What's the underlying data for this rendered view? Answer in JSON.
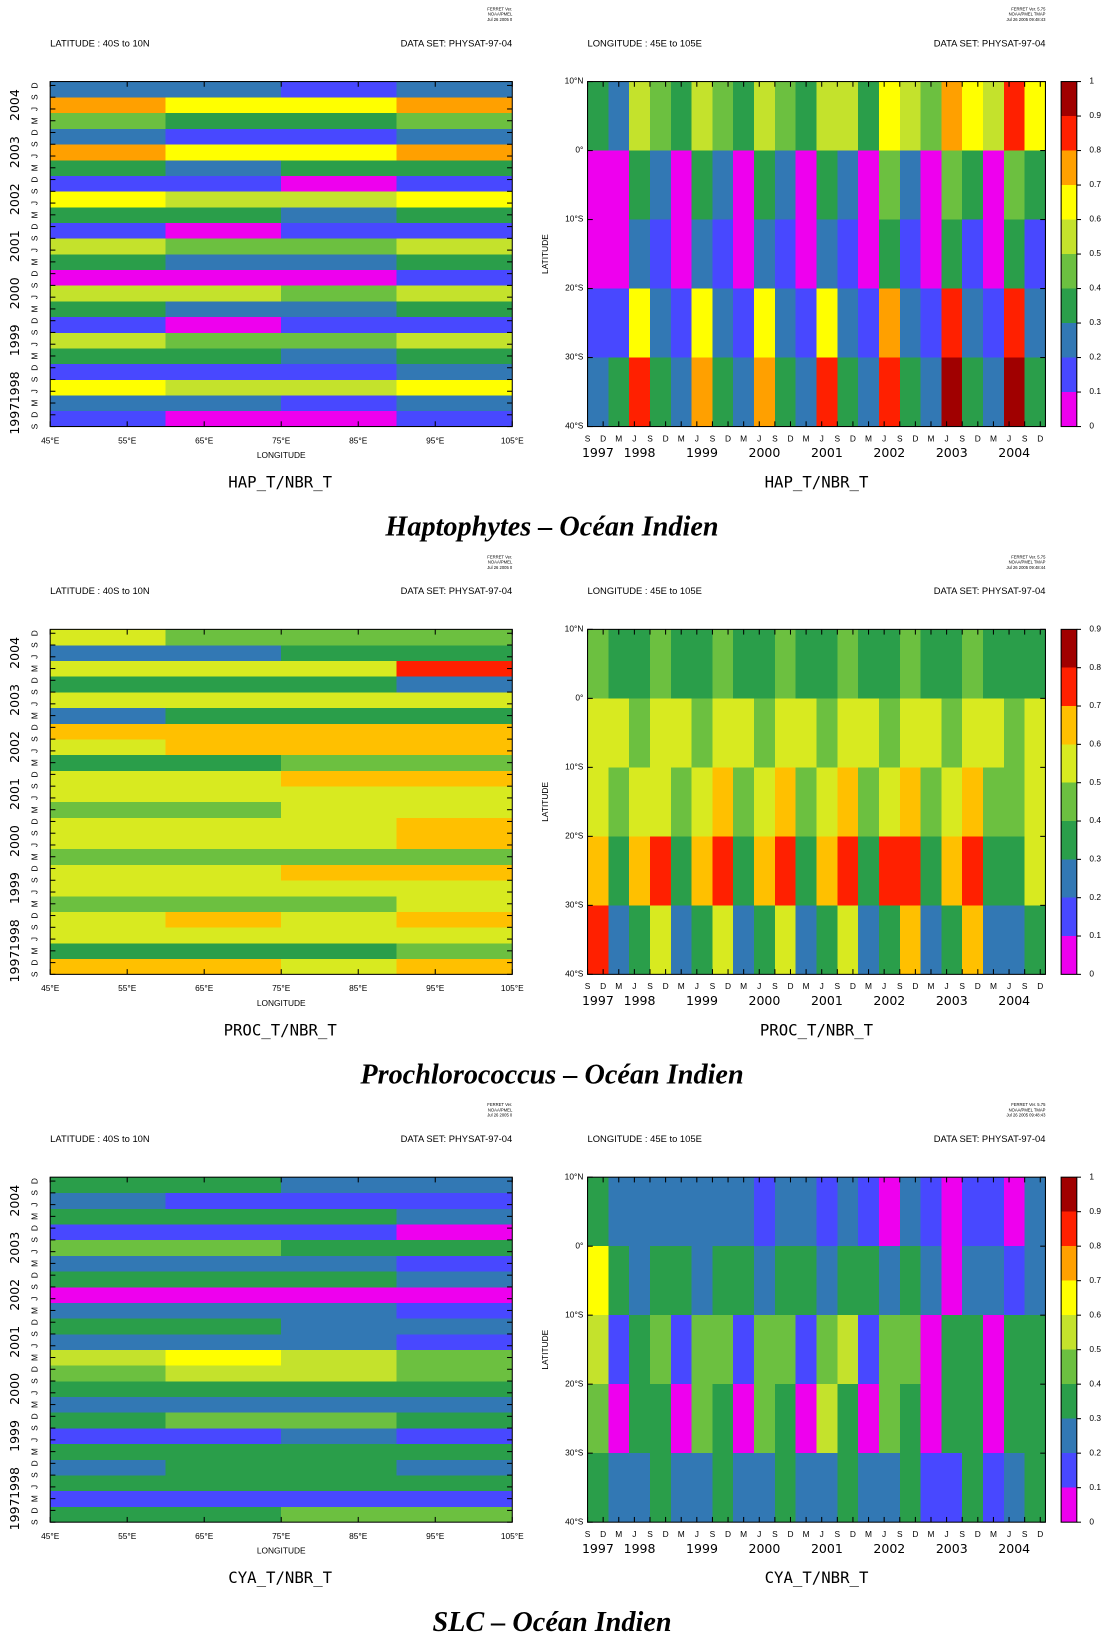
{
  "axes": {
    "time": {
      "lim": [
        1997.667,
        2005.0
      ],
      "ticks": [
        {
          "value": 1997.667,
          "label": "S"
        },
        {
          "value": 1997.917,
          "label": "D"
        },
        {
          "value": 1998.167,
          "label": "M"
        },
        {
          "value": 1998.417,
          "label": "J"
        },
        {
          "value": 1998.667,
          "label": "S"
        },
        {
          "value": 1998.917,
          "label": "D"
        },
        {
          "value": 1999.167,
          "label": "M"
        },
        {
          "value": 1999.417,
          "label": "J"
        },
        {
          "value": 1999.667,
          "label": "S"
        },
        {
          "value": 1999.917,
          "label": "D"
        },
        {
          "value": 2000.167,
          "label": "M"
        },
        {
          "value": 2000.417,
          "label": "J"
        },
        {
          "value": 2000.667,
          "label": "S"
        },
        {
          "value": 2000.917,
          "label": "D"
        },
        {
          "value": 2001.167,
          "label": "M"
        },
        {
          "value": 2001.417,
          "label": "J"
        },
        {
          "value": 2001.667,
          "label": "S"
        },
        {
          "value": 2001.917,
          "label": "D"
        },
        {
          "value": 2002.167,
          "label": "M"
        },
        {
          "value": 2002.417,
          "label": "J"
        },
        {
          "value": 2002.667,
          "label": "S"
        },
        {
          "value": 2002.917,
          "label": "D"
        },
        {
          "value": 2003.167,
          "label": "M"
        },
        {
          "value": 2003.417,
          "label": "J"
        },
        {
          "value": 2003.667,
          "label": "S"
        },
        {
          "value": 2003.917,
          "label": "D"
        },
        {
          "value": 2004.167,
          "label": "M"
        },
        {
          "value": 2004.417,
          "label": "J"
        },
        {
          "value": 2004.667,
          "label": "S"
        },
        {
          "value": 2004.917,
          "label": "D"
        }
      ],
      "years": [
        {
          "value": 1997.833,
          "label": "1997"
        },
        {
          "value": 1998.5,
          "label": "1998"
        },
        {
          "value": 1999.5,
          "label": "1999"
        },
        {
          "value": 2000.5,
          "label": "2000"
        },
        {
          "value": 2001.5,
          "label": "2001"
        },
        {
          "value": 2002.5,
          "label": "2002"
        },
        {
          "value": 2003.5,
          "label": "2003"
        },
        {
          "value": 2004.5,
          "label": "2004"
        }
      ],
      "bins": [
        1997.667,
        1998.0,
        1998.333,
        1998.667,
        1999.0,
        1999.333,
        1999.667,
        2000.0,
        2000.333,
        2000.667,
        2001.0,
        2001.333,
        2001.667,
        2002.0,
        2002.333,
        2002.667,
        2003.0,
        2003.333,
        2003.667,
        2004.0,
        2004.333,
        2004.667,
        2005.0
      ]
    },
    "longitude": {
      "label": "LONGITUDE",
      "lim": [
        45,
        105
      ],
      "ticks": [
        {
          "value": 45,
          "label": "45°E"
        },
        {
          "value": 55,
          "label": "55°E"
        },
        {
          "value": 65,
          "label": "65°E"
        },
        {
          "value": 75,
          "label": "75°E"
        },
        {
          "value": 85,
          "label": "85°E"
        },
        {
          "value": 95,
          "label": "95°E"
        },
        {
          "value": 105,
          "label": "105°E"
        }
      ],
      "bins": [
        45,
        60,
        75,
        90,
        105
      ]
    },
    "latitude": {
      "label": "LATITUDE",
      "lim": [
        -40,
        10
      ],
      "ticks": [
        {
          "value": 10,
          "label": "10°N"
        },
        {
          "value": 0,
          "label": "0°"
        },
        {
          "value": -10,
          "label": "10°S"
        },
        {
          "value": -20,
          "label": "20°S"
        },
        {
          "value": -30,
          "label": "30°S"
        },
        {
          "value": -40,
          "label": "40°S"
        }
      ],
      "bins": [
        10,
        0,
        -10,
        -20,
        -30,
        -40
      ]
    }
  },
  "chart_data": [
    {
      "type": "heatmap",
      "orientation": "time-longitude",
      "colorbar": false,
      "stamp": [
        "FERRET Ver.",
        "NOAA/PMEL",
        "Jul 26 2005 0"
      ],
      "header_left": "LATITUDE : 40S to 10N",
      "header_right": "DATA SET: PHYSAT-97-04",
      "title": "HAP_T/NBR_T",
      "levels": [
        0,
        0.1,
        0.2,
        0.3,
        0.4,
        0.5,
        0.6,
        0.7,
        0.8,
        0.9,
        1
      ],
      "colors": [
        "#ee00ee",
        "#4848ff",
        "#3278b4",
        "#2a9e4a",
        "#6cc040",
        "#c4e22c",
        "#ffff00",
        "#ffa000",
        "#ff2000",
        "#a00000"
      ],
      "z": [
        [
          0.1,
          0.05,
          0.05,
          0.1
        ],
        [
          0.2,
          0.2,
          0.1,
          0.2
        ],
        [
          0.6,
          0.5,
          0.5,
          0.6
        ],
        [
          0.1,
          0.1,
          0.1,
          0.2
        ],
        [
          0.3,
          0.3,
          0.2,
          0.3
        ],
        [
          0.5,
          0.4,
          0.4,
          0.5
        ],
        [
          0.1,
          0.05,
          0.1,
          0.1
        ],
        [
          0.3,
          0.2,
          0.2,
          0.3
        ],
        [
          0.5,
          0.5,
          0.4,
          0.5
        ],
        [
          0.05,
          0.05,
          0.05,
          0.1
        ],
        [
          0.3,
          0.2,
          0.2,
          0.3
        ],
        [
          0.5,
          0.4,
          0.4,
          0.5
        ],
        [
          0.1,
          0.05,
          0.1,
          0.1
        ],
        [
          0.3,
          0.3,
          0.2,
          0.3
        ],
        [
          0.6,
          0.5,
          0.5,
          0.6
        ],
        [
          0.1,
          0.1,
          0.05,
          0.1
        ],
        [
          0.3,
          0.2,
          0.3,
          0.3
        ],
        [
          0.7,
          0.6,
          0.6,
          0.7
        ],
        [
          0.2,
          0.1,
          0.1,
          0.2
        ],
        [
          0.4,
          0.3,
          0.3,
          0.4
        ],
        [
          0.7,
          0.6,
          0.6,
          0.7
        ],
        [
          0.2,
          0.2,
          0.1,
          0.2
        ]
      ]
    },
    {
      "type": "heatmap",
      "orientation": "latitude-time",
      "colorbar": true,
      "stamp": [
        "FERRET Ver. 5.75",
        "NOAA/PMEL TMAP",
        "Jul 26 2005 09:48:43"
      ],
      "header_left": "LONGITUDE : 45E to 105E",
      "header_right": "DATA SET: PHYSAT-97-04",
      "title": "HAP_T/NBR_T",
      "levels": [
        0,
        0.1,
        0.2,
        0.3,
        0.4,
        0.5,
        0.6,
        0.7,
        0.8,
        0.9,
        1
      ],
      "colors": [
        "#ee00ee",
        "#4848ff",
        "#3278b4",
        "#2a9e4a",
        "#6cc040",
        "#c4e22c",
        "#ffff00",
        "#ffa000",
        "#ff2000",
        "#a00000"
      ],
      "z": [
        [
          0.3,
          0.2,
          0.5,
          0.4,
          0.3,
          0.5,
          0.4,
          0.3,
          0.5,
          0.4,
          0.3,
          0.5,
          0.5,
          0.3,
          0.6,
          0.5,
          0.4,
          0.7,
          0.6,
          0.5,
          0.8,
          0.6
        ],
        [
          0.05,
          0.05,
          0.3,
          0.2,
          0.05,
          0.3,
          0.2,
          0.05,
          0.3,
          0.2,
          0.05,
          0.3,
          0.2,
          0.05,
          0.4,
          0.2,
          0.05,
          0.4,
          0.3,
          0.05,
          0.4,
          0.3
        ],
        [
          0.05,
          0.05,
          0.2,
          0.1,
          0.05,
          0.2,
          0.1,
          0.05,
          0.2,
          0.1,
          0.05,
          0.2,
          0.1,
          0.05,
          0.3,
          0.1,
          0.05,
          0.3,
          0.1,
          0.05,
          0.3,
          0.1
        ],
        [
          0.1,
          0.1,
          0.6,
          0.2,
          0.1,
          0.6,
          0.2,
          0.1,
          0.6,
          0.2,
          0.1,
          0.6,
          0.2,
          0.1,
          0.7,
          0.2,
          0.1,
          0.8,
          0.2,
          0.1,
          0.8,
          0.2
        ],
        [
          0.2,
          0.3,
          0.8,
          0.3,
          0.2,
          0.7,
          0.3,
          0.2,
          0.7,
          0.3,
          0.2,
          0.8,
          0.3,
          0.2,
          0.8,
          0.3,
          0.2,
          0.9,
          0.3,
          0.2,
          0.9,
          0.3
        ]
      ]
    },
    {
      "type": "heatmap",
      "orientation": "time-longitude",
      "colorbar": false,
      "stamp": [
        "FERRET Ver.",
        "NOAA/PMEL",
        "Jul 26 2005 0"
      ],
      "header_left": "LATITUDE : 40S to 10N",
      "header_right": "DATA SET: PHYSAT-97-04",
      "title": "PROC_T/NBR_T",
      "levels": [
        0,
        0.1,
        0.2,
        0.3,
        0.4,
        0.5,
        0.6,
        0.7,
        0.8,
        0.9
      ],
      "colors": [
        "#ee00ee",
        "#4848ff",
        "#3278b4",
        "#2a9e4a",
        "#6cc040",
        "#d8ea20",
        "#ffc000",
        "#ff2000",
        "#a00000"
      ],
      "z": [
        [
          0.6,
          0.6,
          0.5,
          0.6
        ],
        [
          0.3,
          0.3,
          0.3,
          0.4
        ],
        [
          0.5,
          0.5,
          0.5,
          0.5
        ],
        [
          0.5,
          0.6,
          0.5,
          0.6
        ],
        [
          0.4,
          0.4,
          0.4,
          0.5
        ],
        [
          0.5,
          0.5,
          0.5,
          0.5
        ],
        [
          0.5,
          0.5,
          0.6,
          0.6
        ],
        [
          0.4,
          0.4,
          0.4,
          0.4
        ],
        [
          0.5,
          0.5,
          0.5,
          0.6
        ],
        [
          0.5,
          0.5,
          0.5,
          0.6
        ],
        [
          0.4,
          0.4,
          0.5,
          0.5
        ],
        [
          0.5,
          0.5,
          0.5,
          0.5
        ],
        [
          0.5,
          0.5,
          0.6,
          0.6
        ],
        [
          0.3,
          0.3,
          0.4,
          0.4
        ],
        [
          0.5,
          0.6,
          0.6,
          0.6
        ],
        [
          0.6,
          0.6,
          0.6,
          0.6
        ],
        [
          0.2,
          0.3,
          0.3,
          0.3
        ],
        [
          0.5,
          0.5,
          0.5,
          0.5
        ],
        [
          0.3,
          0.3,
          0.3,
          0.2
        ],
        [
          0.5,
          0.5,
          0.5,
          0.7
        ],
        [
          0.2,
          0.2,
          0.3,
          0.3
        ],
        [
          0.5,
          0.4,
          0.4,
          0.4
        ]
      ]
    },
    {
      "type": "heatmap",
      "orientation": "latitude-time",
      "colorbar": true,
      "stamp": [
        "FERRET Ver. 5.75",
        "NOAA/PMEL TMAP",
        "Jul 26 2005 09:48:44"
      ],
      "header_left": "LONGITUDE : 45E to 105E",
      "header_right": "DATA SET: PHYSAT-97-04",
      "title": "PROC_T/NBR_T",
      "levels": [
        0,
        0.1,
        0.2,
        0.3,
        0.4,
        0.5,
        0.6,
        0.7,
        0.8,
        0.9
      ],
      "colors": [
        "#ee00ee",
        "#4848ff",
        "#3278b4",
        "#2a9e4a",
        "#6cc040",
        "#d8ea20",
        "#ffc000",
        "#ff2000",
        "#a00000"
      ],
      "z": [
        [
          0.4,
          0.3,
          0.3,
          0.4,
          0.3,
          0.3,
          0.4,
          0.3,
          0.3,
          0.4,
          0.3,
          0.3,
          0.4,
          0.3,
          0.3,
          0.4,
          0.3,
          0.3,
          0.4,
          0.3,
          0.3,
          0.3
        ],
        [
          0.5,
          0.5,
          0.4,
          0.5,
          0.5,
          0.4,
          0.5,
          0.5,
          0.4,
          0.5,
          0.5,
          0.4,
          0.5,
          0.5,
          0.4,
          0.5,
          0.5,
          0.4,
          0.5,
          0.5,
          0.4,
          0.5
        ],
        [
          0.5,
          0.4,
          0.5,
          0.5,
          0.4,
          0.5,
          0.6,
          0.4,
          0.5,
          0.6,
          0.4,
          0.5,
          0.6,
          0.4,
          0.5,
          0.6,
          0.4,
          0.5,
          0.6,
          0.4,
          0.4,
          0.5
        ],
        [
          0.6,
          0.3,
          0.6,
          0.7,
          0.3,
          0.6,
          0.7,
          0.3,
          0.6,
          0.7,
          0.3,
          0.6,
          0.7,
          0.3,
          0.7,
          0.7,
          0.3,
          0.6,
          0.7,
          0.3,
          0.3,
          0.5
        ],
        [
          0.7,
          0.2,
          0.3,
          0.5,
          0.2,
          0.3,
          0.5,
          0.2,
          0.3,
          0.5,
          0.2,
          0.3,
          0.5,
          0.2,
          0.3,
          0.6,
          0.2,
          0.3,
          0.6,
          0.2,
          0.2,
          0.3
        ]
      ]
    },
    {
      "type": "heatmap",
      "orientation": "time-longitude",
      "colorbar": false,
      "stamp": [
        "FERRET Ver.",
        "NOAA/PMEL",
        "Jul 26 2005 0"
      ],
      "header_left": "LATITUDE : 40S to 10N",
      "header_right": "DATA SET: PHYSAT-97-04",
      "title": "CYA_T/NBR_T",
      "levels": [
        0,
        0.1,
        0.2,
        0.3,
        0.4,
        0.5,
        0.6,
        0.7,
        0.8,
        0.9,
        1
      ],
      "colors": [
        "#ee00ee",
        "#4848ff",
        "#3278b4",
        "#2a9e4a",
        "#6cc040",
        "#c4e22c",
        "#ffff00",
        "#ffa000",
        "#ff2000",
        "#a00000"
      ],
      "z": [
        [
          0.3,
          0.3,
          0.4,
          0.4
        ],
        [
          0.1,
          0.1,
          0.1,
          0.1
        ],
        [
          0.3,
          0.3,
          0.3,
          0.3
        ],
        [
          0.2,
          0.3,
          0.3,
          0.2
        ],
        [
          0.3,
          0.3,
          0.3,
          0.3
        ],
        [
          0.1,
          0.1,
          0.2,
          0.1
        ],
        [
          0.3,
          0.4,
          0.4,
          0.3
        ],
        [
          0.2,
          0.2,
          0.2,
          0.2
        ],
        [
          0.3,
          0.3,
          0.3,
          0.3
        ],
        [
          0.4,
          0.5,
          0.5,
          0.4
        ],
        [
          0.5,
          0.6,
          0.5,
          0.4
        ],
        [
          0.2,
          0.2,
          0.2,
          0.1
        ],
        [
          0.3,
          0.3,
          0.2,
          0.2
        ],
        [
          0.2,
          0.2,
          0.2,
          0.1
        ],
        [
          0.05,
          0.05,
          0.05,
          0.05
        ],
        [
          0.3,
          0.3,
          0.3,
          0.2
        ],
        [
          0.2,
          0.2,
          0.2,
          0.1
        ],
        [
          0.4,
          0.4,
          0.3,
          0.3
        ],
        [
          0.1,
          0.1,
          0.1,
          0.05
        ],
        [
          0.3,
          0.3,
          0.3,
          0.2
        ],
        [
          0.2,
          0.1,
          0.1,
          0.1
        ],
        [
          0.3,
          0.3,
          0.2,
          0.2
        ]
      ]
    },
    {
      "type": "heatmap",
      "orientation": "latitude-time",
      "colorbar": true,
      "stamp": [
        "FERRET Ver. 5.75",
        "NOAA/PMEL TMAP",
        "Jul 26 2005 09:48:43"
      ],
      "header_left": "LONGITUDE : 45E to 105E",
      "header_right": "DATA SET: PHYSAT-97-04",
      "title": "CYA_T/NBR_T",
      "levels": [
        0,
        0.1,
        0.2,
        0.3,
        0.4,
        0.5,
        0.6,
        0.7,
        0.8,
        0.9,
        1
      ],
      "colors": [
        "#ee00ee",
        "#4848ff",
        "#3278b4",
        "#2a9e4a",
        "#6cc040",
        "#c4e22c",
        "#ffff00",
        "#ffa000",
        "#ff2000",
        "#a00000"
      ],
      "z": [
        [
          0.3,
          0.2,
          0.2,
          0.2,
          0.2,
          0.2,
          0.2,
          0.2,
          0.1,
          0.2,
          0.2,
          0.1,
          0.2,
          0.1,
          0.05,
          0.2,
          0.1,
          0.05,
          0.1,
          0.1,
          0.05,
          0.2
        ],
        [
          0.6,
          0.3,
          0.2,
          0.3,
          0.3,
          0.2,
          0.3,
          0.3,
          0.2,
          0.3,
          0.3,
          0.2,
          0.3,
          0.3,
          0.2,
          0.3,
          0.2,
          0.05,
          0.2,
          0.2,
          0.1,
          0.2
        ],
        [
          0.5,
          0.1,
          0.3,
          0.4,
          0.1,
          0.4,
          0.4,
          0.1,
          0.4,
          0.4,
          0.1,
          0.4,
          0.5,
          0.1,
          0.4,
          0.4,
          0.05,
          0.3,
          0.3,
          0.05,
          0.3,
          0.3
        ],
        [
          0.4,
          0.05,
          0.3,
          0.3,
          0.05,
          0.4,
          0.3,
          0.05,
          0.4,
          0.3,
          0.05,
          0.5,
          0.3,
          0.05,
          0.4,
          0.3,
          0.05,
          0.3,
          0.3,
          0.05,
          0.3,
          0.3
        ],
        [
          0.3,
          0.2,
          0.2,
          0.3,
          0.2,
          0.2,
          0.3,
          0.2,
          0.2,
          0.3,
          0.2,
          0.2,
          0.3,
          0.2,
          0.2,
          0.3,
          0.1,
          0.1,
          0.3,
          0.1,
          0.2,
          0.3
        ]
      ]
    }
  ],
  "captions": [
    "Haptophytes – Océan Indien",
    "Prochlorococcus – Océan Indien",
    "SLC – Océan Indien"
  ]
}
